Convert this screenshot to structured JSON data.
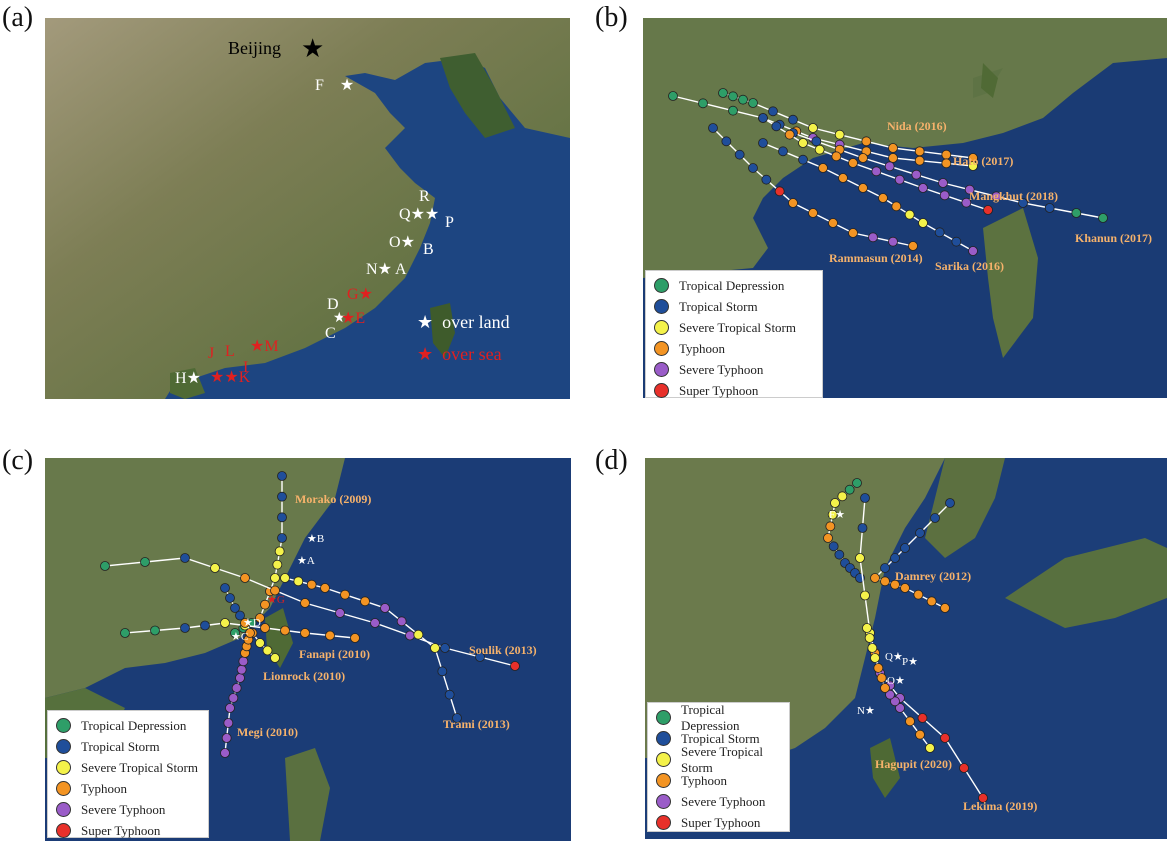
{
  "panels": [
    {
      "letter": "(a)"
    },
    {
      "letter": "(b)"
    },
    {
      "letter": "(c)"
    },
    {
      "letter": "(d)"
    }
  ],
  "colors": {
    "tropical_depression": "#2e9e68",
    "tropical_storm": "#1f4e9a",
    "severe_tropical_storm": "#f4f24a",
    "typhoon": "#f39423",
    "severe_typhoon": "#9a5cc8",
    "super_typhoon": "#e8302a",
    "land": "#6a7f4a",
    "sea": "#1c3f7a"
  },
  "panel_a": {
    "capital": "Beijing",
    "stations_land": [
      "F",
      "R",
      "Q",
      "P",
      "O",
      "B",
      "N",
      "A",
      "D",
      "C",
      "H"
    ],
    "stations_sea": [
      "G",
      "E",
      "J",
      "L",
      "M",
      "I",
      "K"
    ],
    "legend_land": "over land",
    "legend_sea": "over sea"
  },
  "legend_categories": [
    {
      "label": "Tropical Depression",
      "key": "tropical_depression"
    },
    {
      "label": "Tropical Storm",
      "key": "tropical_storm"
    },
    {
      "label": "Severe Tropical Storm",
      "key": "severe_tropical_storm"
    },
    {
      "label": "Typhoon",
      "key": "typhoon"
    },
    {
      "label": "Severe Typhoon",
      "key": "severe_typhoon"
    },
    {
      "label": "Super Typhoon",
      "key": "super_typhoon"
    }
  ],
  "panel_b": {
    "typhoons": [
      "Nida (2016)",
      "Hato (2017)",
      "Mangkhut (2018)",
      "Khanun (2017)",
      "Rammasun (2014)",
      "Sarika (2016)"
    ]
  },
  "panel_c": {
    "typhoons": [
      "Morako (2009)",
      "Fanapi (2010)",
      "Lionrock (2010)",
      "Megi (2010)",
      "Soulik (2013)",
      "Trami (2013)"
    ],
    "stations": [
      "B",
      "A",
      "G",
      "D",
      "C"
    ]
  },
  "panel_d": {
    "typhoons": [
      "Damrey (2012)",
      "Hagupit (2020)",
      "Lekima (2019)"
    ],
    "stations": [
      "F",
      "Q",
      "P",
      "O",
      "N"
    ]
  }
}
